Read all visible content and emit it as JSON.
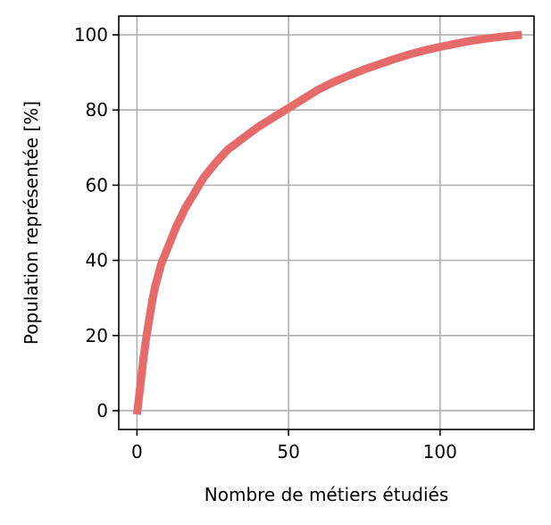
{
  "chart_data": {
    "type": "line",
    "xlabel": "Nombre de métiers étudiés",
    "ylabel": "Population représentée [%]",
    "xlim": [
      -6,
      131
    ],
    "ylim": [
      -5,
      105
    ],
    "xticks": [
      0,
      50,
      100
    ],
    "yticks": [
      0,
      20,
      40,
      60,
      80,
      100
    ],
    "xtick_labels": [
      "0",
      "50",
      "100"
    ],
    "ytick_labels": [
      "0",
      "20",
      "40",
      "60",
      "80",
      "100"
    ],
    "grid": true,
    "line_color": "#e66a6a",
    "series": [
      {
        "x": [
          0,
          1,
          2,
          3,
          4,
          5,
          6,
          8,
          10,
          13,
          16,
          19,
          22,
          26,
          30,
          35,
          40,
          45,
          50,
          55,
          60,
          65,
          70,
          75,
          80,
          85,
          90,
          95,
          100,
          105,
          110,
          115,
          120,
          127
        ],
        "y": [
          -1,
          6,
          13,
          19,
          24,
          29,
          33,
          39,
          43,
          49,
          54,
          58,
          62,
          66,
          69.5,
          72.5,
          75.5,
          78,
          80.5,
          83,
          85.5,
          87.5,
          89.2,
          90.8,
          92.2,
          93.6,
          94.8,
          95.9,
          96.8,
          97.6,
          98.4,
          99.0,
          99.5,
          100
        ]
      }
    ]
  }
}
